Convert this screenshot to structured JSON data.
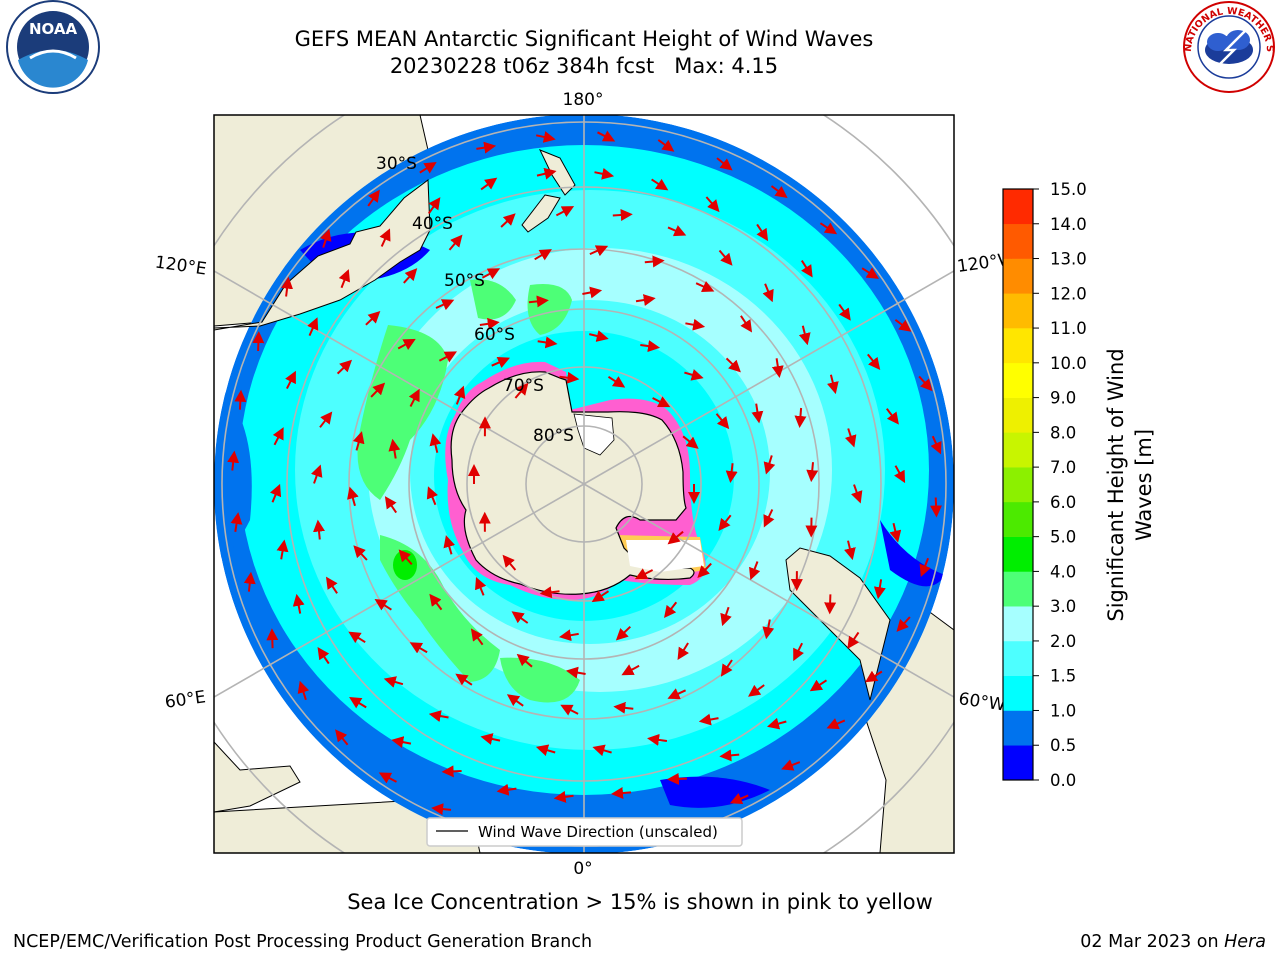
{
  "title": {
    "line1": "GEFS MEAN Antarctic Significant Height of Wind Waves",
    "line2": "20230228 t06z 384h fcst   Max: 4.15"
  },
  "logos": {
    "left": {
      "icon": "noaa-logo",
      "text": "NOAA"
    },
    "right": {
      "icon": "nws-logo",
      "text": "NATIONAL WEATHER SERVICE"
    }
  },
  "map": {
    "projection": "south-polar-stereographic",
    "longitude_labels": [
      "180°",
      "120°E",
      "120°W",
      "60°E",
      "60°W",
      "0°"
    ],
    "latitude_labels": [
      "30°S",
      "40°S",
      "50°S",
      "60°S",
      "70°S",
      "80°S"
    ],
    "legend": {
      "label": "Wind Wave Direction (unscaled)"
    },
    "colors": {
      "land": "#efedd8",
      "sea_ice": "#ff5fd0",
      "arrow": "#e00000",
      "grid": "#b4b4b4"
    }
  },
  "colorbar": {
    "label_line1": "Significant Height of Wind",
    "label_line2": "Waves [m]",
    "ticks": [
      "0.0",
      "0.5",
      "1.0",
      "1.5",
      "2.0",
      "3.0",
      "4.0",
      "5.0",
      "6.0",
      "7.0",
      "8.0",
      "9.0",
      "10.0",
      "11.0",
      "12.0",
      "13.0",
      "14.0",
      "15.0"
    ],
    "colors": [
      "#0000ff",
      "#0073ee",
      "#00ffff",
      "#4dffff",
      "#a6ffff",
      "#4dff77",
      "#00ee00",
      "#4cea00",
      "#8cf000",
      "#c8f500",
      "#eef000",
      "#ffff00",
      "#ffe600",
      "#ffbb00",
      "#ff8c00",
      "#ff5a00",
      "#ff2a00"
    ]
  },
  "caption": "Sea Ice Concentration > 15% is shown in pink to yellow",
  "footer": {
    "left": "NCEP/EMC/Verification Post Processing Product Generation Branch",
    "right_date": "02 Mar 2023 on ",
    "right_host": "Hera"
  }
}
